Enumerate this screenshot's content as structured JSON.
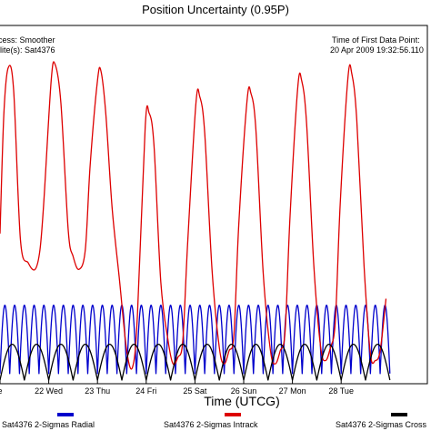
{
  "chart_data": {
    "type": "line",
    "title": "Position Uncertainty (0.95P)",
    "xlabel": "Time (UTCG)",
    "ylabel": "",
    "grid": false,
    "legend_position": "bottom",
    "annotations": {
      "left_line1": "cess: Smoother",
      "left_line2": "llite(s): Sat4376",
      "right_line1": "Time of First Data Point:",
      "right_line2": "20 Apr 2009 19:32:56.110"
    },
    "x_ticks": [
      "e",
      "22 Wed",
      "23 Thu",
      "24 Fri",
      "25 Sat",
      "26 Sun",
      "27 Mon",
      "28 Tue"
    ],
    "x_range_days": [
      21.0,
      29.0
    ],
    "y_range_relative": [
      0,
      1
    ],
    "series": [
      {
        "name": "Sat4376 2-Sigmas Radial",
        "color": "#0000cc",
        "shape": "periodic arches",
        "peaks_per_day": 5,
        "peak_level": 0.23,
        "trough_level": 0.02
      },
      {
        "name": "Sat4376 2-Sigmas Intrack",
        "color": "#dd0000",
        "shape": "daily peaks",
        "points": [
          [
            21.0,
            0.45
          ],
          [
            21.08,
            0.82
          ],
          [
            21.17,
            0.96
          ],
          [
            21.28,
            0.89
          ],
          [
            21.42,
            0.43
          ],
          [
            21.58,
            0.36
          ],
          [
            21.72,
            0.34
          ],
          [
            21.82,
            0.4
          ],
          [
            21.9,
            0.55
          ],
          [
            22.05,
            0.92
          ],
          [
            22.13,
            0.97
          ],
          [
            22.25,
            0.85
          ],
          [
            22.4,
            0.46
          ],
          [
            22.5,
            0.38
          ],
          [
            22.62,
            0.34
          ],
          [
            22.75,
            0.4
          ],
          [
            22.85,
            0.66
          ],
          [
            23.0,
            0.92
          ],
          [
            23.07,
            0.95
          ],
          [
            23.17,
            0.82
          ],
          [
            23.3,
            0.53
          ],
          [
            23.45,
            0.31
          ],
          [
            23.6,
            0.09
          ],
          [
            23.72,
            0.04
          ],
          [
            23.82,
            0.2
          ],
          [
            23.98,
            0.78
          ],
          [
            24.06,
            0.82
          ],
          [
            24.16,
            0.72
          ],
          [
            24.3,
            0.3
          ],
          [
            24.45,
            0.12
          ],
          [
            24.55,
            0.05
          ],
          [
            24.65,
            0.07
          ],
          [
            24.75,
            0.12
          ],
          [
            24.85,
            0.42
          ],
          [
            25.02,
            0.85
          ],
          [
            25.1,
            0.87
          ],
          [
            25.2,
            0.76
          ],
          [
            25.35,
            0.34
          ],
          [
            25.5,
            0.1
          ],
          [
            25.6,
            0.05
          ],
          [
            25.7,
            0.09
          ],
          [
            25.8,
            0.14
          ],
          [
            25.9,
            0.48
          ],
          [
            26.07,
            0.86
          ],
          [
            26.15,
            0.88
          ],
          [
            26.25,
            0.77
          ],
          [
            26.4,
            0.33
          ],
          [
            26.55,
            0.09
          ],
          [
            26.65,
            0.05
          ],
          [
            26.75,
            0.09
          ],
          [
            26.85,
            0.15
          ],
          [
            26.95,
            0.5
          ],
          [
            27.11,
            0.9
          ],
          [
            27.19,
            0.92
          ],
          [
            27.29,
            0.79
          ],
          [
            27.44,
            0.35
          ],
          [
            27.58,
            0.1
          ],
          [
            27.68,
            0.06
          ],
          [
            27.78,
            0.1
          ],
          [
            27.88,
            0.18
          ],
          [
            27.98,
            0.54
          ],
          [
            28.14,
            0.93
          ],
          [
            28.22,
            0.94
          ],
          [
            28.32,
            0.8
          ],
          [
            28.47,
            0.35
          ],
          [
            28.6,
            0.08
          ],
          [
            28.7,
            0.06
          ],
          [
            28.8,
            0.09
          ],
          [
            28.92,
            0.25
          ]
        ]
      },
      {
        "name": "Sat4376 2-Sigmas Cross",
        "color": "#000000",
        "shape": "periodic arches",
        "peaks_per_day": 2,
        "peak_level": 0.11,
        "trough_level": 0.0
      }
    ]
  }
}
